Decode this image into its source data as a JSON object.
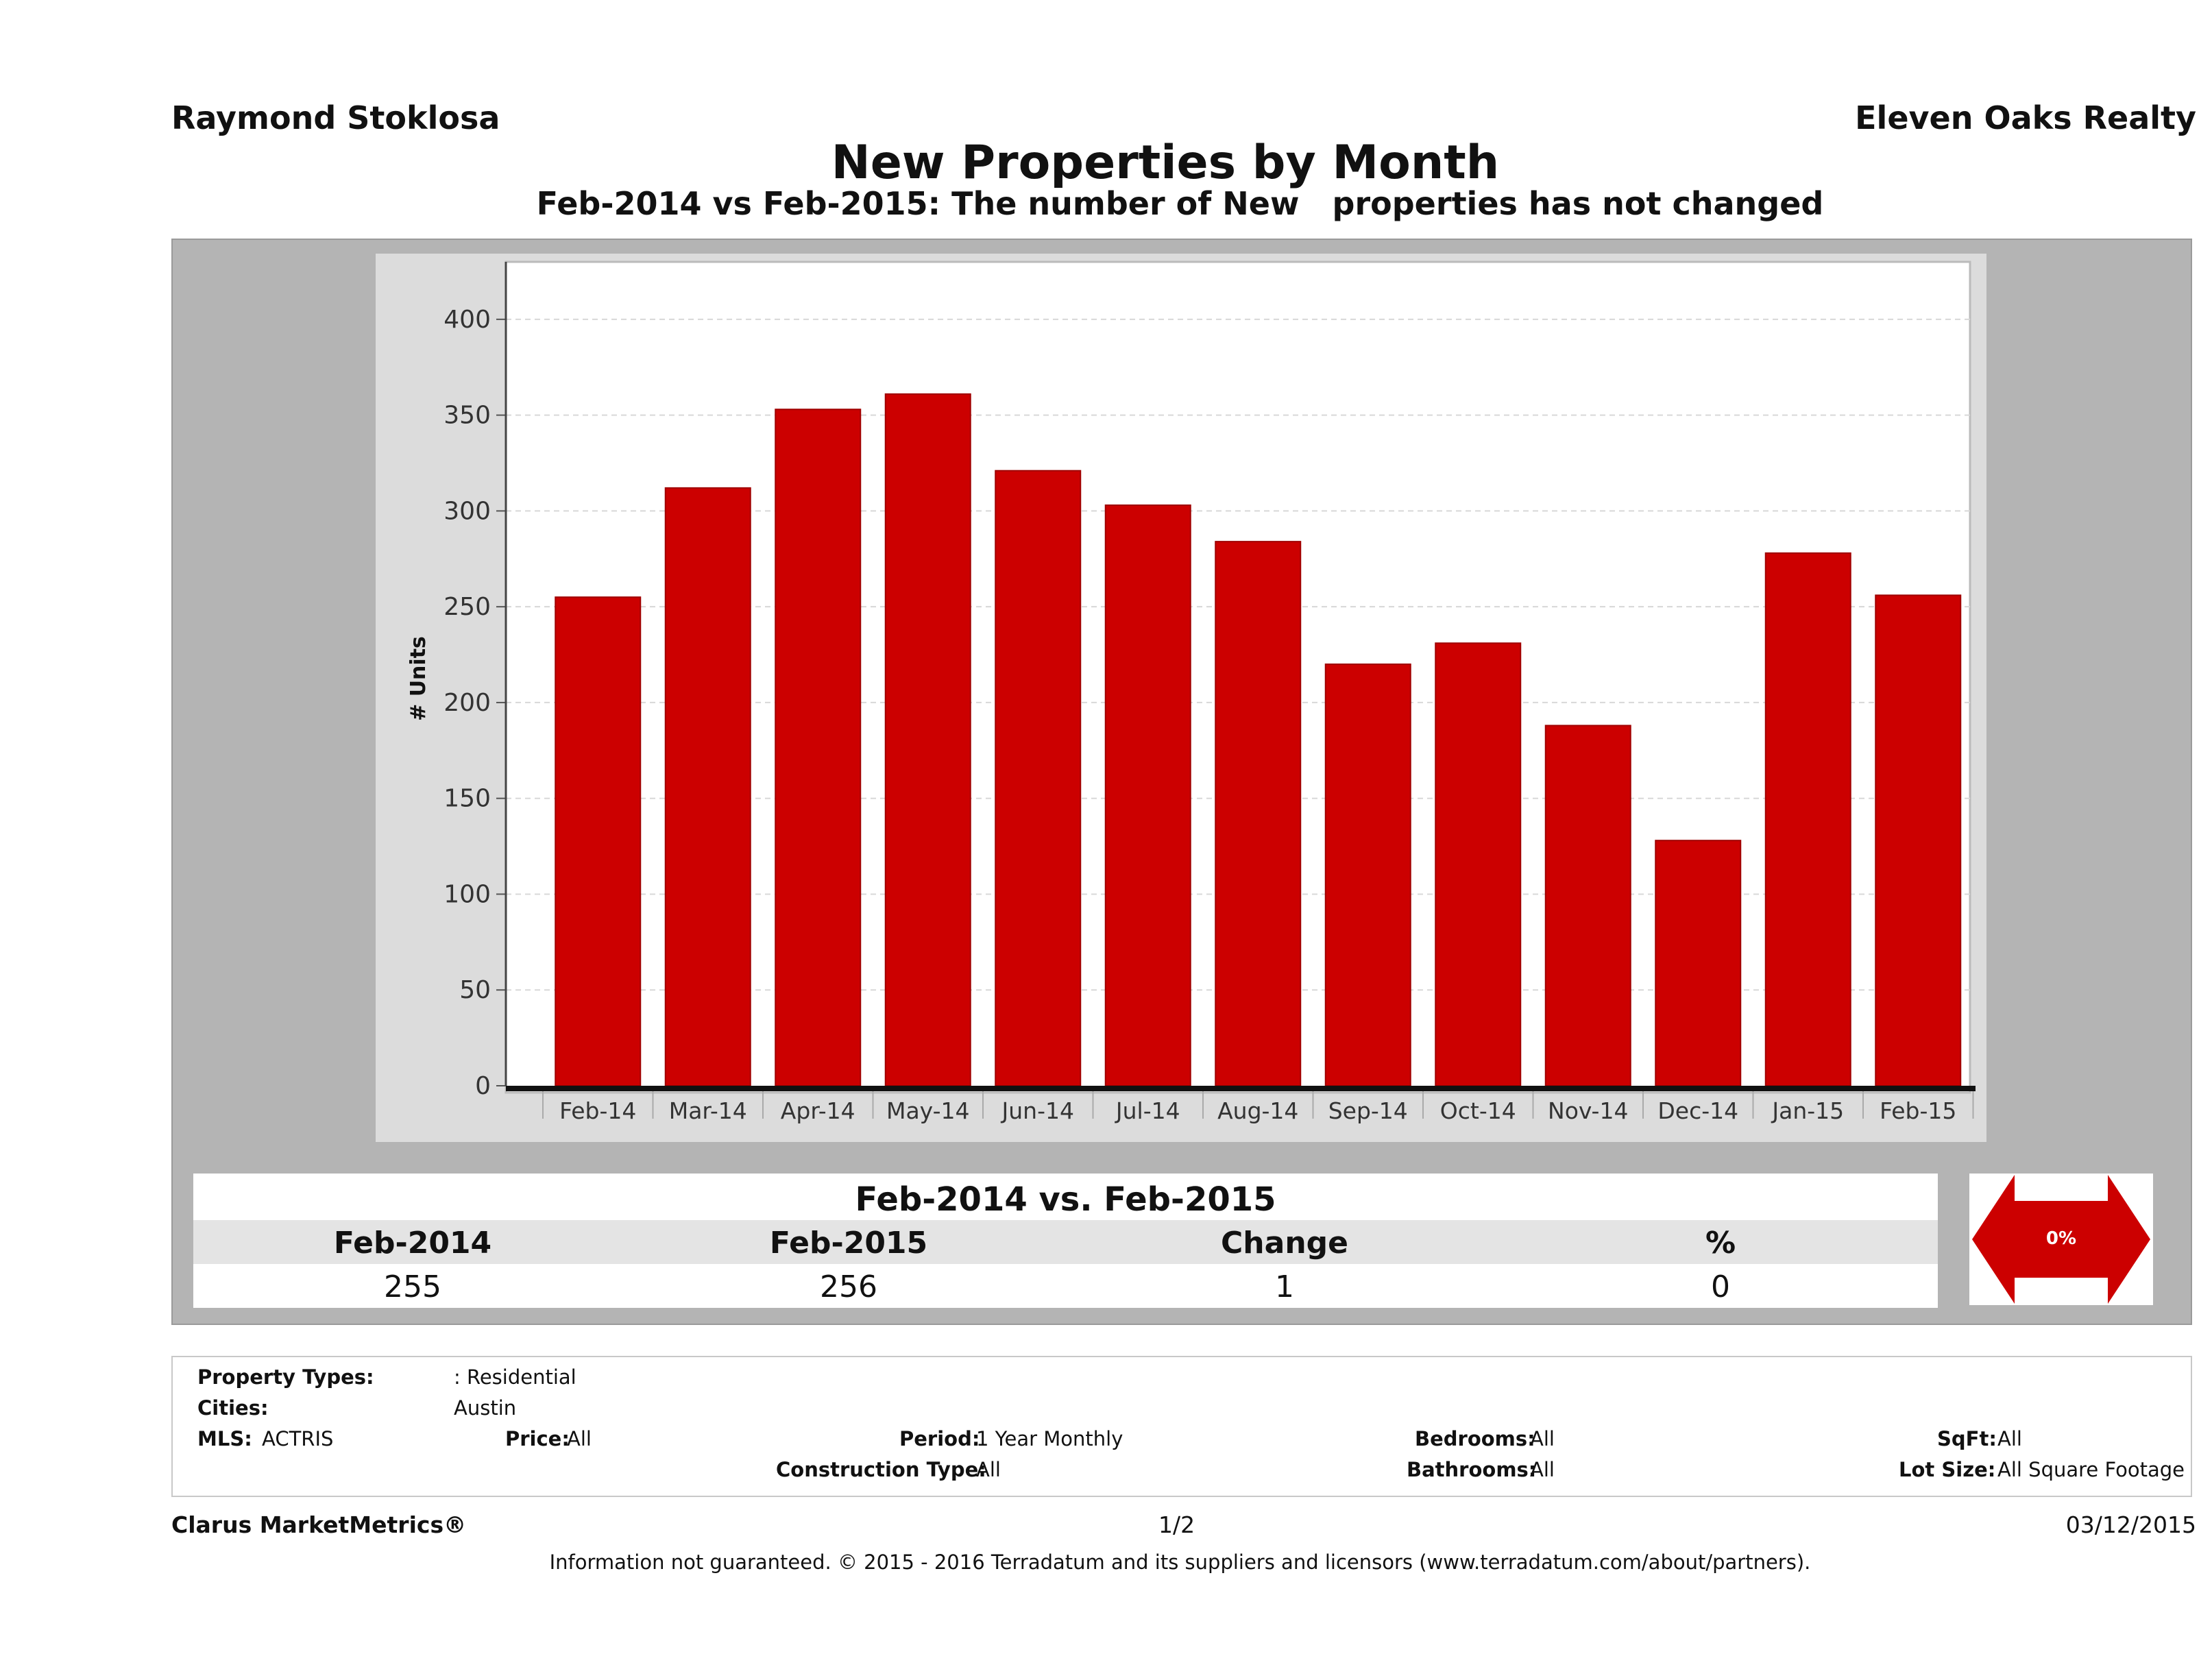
{
  "header": {
    "agent_name": "Raymond Stoklosa",
    "brokerage": "Eleven Oaks Realty",
    "title": "New Properties by Month",
    "subtitle": "Feb-2014 vs Feb-2015: The number of New   properties has not changed"
  },
  "chart_data": {
    "type": "bar",
    "title": "New Properties by Month",
    "xlabel": "",
    "ylabel": "# Units",
    "categories": [
      "Feb-14",
      "Mar-14",
      "Apr-14",
      "May-14",
      "Jun-14",
      "Jul-14",
      "Aug-14",
      "Sep-14",
      "Oct-14",
      "Nov-14",
      "Dec-14",
      "Jan-15",
      "Feb-15"
    ],
    "values": [
      255,
      312,
      353,
      361,
      321,
      303,
      284,
      220,
      231,
      188,
      128,
      278,
      256
    ],
    "ylim": [
      0,
      430
    ],
    "yticks": [
      0,
      50,
      100,
      150,
      200,
      250,
      300,
      350,
      400
    ],
    "grid": true,
    "bar_color": "#cc0000",
    "legend": "none"
  },
  "comparison": {
    "title": "Feb-2014 vs. Feb-2015",
    "headers": [
      "Feb-2014",
      "Feb-2015",
      "Change",
      "%"
    ],
    "values": [
      "255",
      "256",
      "1",
      "0"
    ],
    "badge_label": "0%",
    "badge_color": "#cc0000"
  },
  "criteria": {
    "property_types_label": "Property Types:",
    "property_types_value": ": Residential",
    "cities_label": "Cities:",
    "cities_value": "Austin",
    "mls_label": "MLS:",
    "mls_value": "ACTRIS",
    "price_label": "Price:",
    "price_value": "All",
    "period_label": "Period:",
    "period_value": "1 Year Monthly",
    "construction_label": "Construction Type:",
    "construction_value": "All",
    "bedrooms_label": "Bedrooms:",
    "bedrooms_value": "All",
    "bathrooms_label": "Bathrooms:",
    "bathrooms_value": "All",
    "sqft_label": "SqFt:",
    "sqft_value": "All",
    "lot_label": "Lot Size:",
    "lot_value": "All Square Footage"
  },
  "footer": {
    "brand": "Clarus MarketMetrics®",
    "page": "1/2",
    "date": "03/12/2015",
    "disclaimer": "Information not guaranteed. © 2015 - 2016 Terradatum and its suppliers and licensors (www.terradatum.com/about/partners)."
  }
}
